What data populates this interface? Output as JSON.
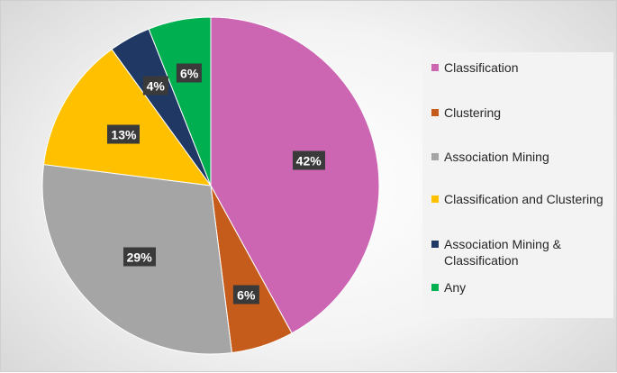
{
  "chart_data": {
    "type": "pie",
    "categories": [
      "Classification",
      "Clustering",
      "Association Mining",
      "Classification and Clustering",
      "Association Mining & Classification",
      "Any"
    ],
    "values": [
      42,
      6,
      29,
      13,
      4,
      6
    ],
    "data_labels": [
      "42%",
      "6%",
      "29%",
      "13%",
      "4%",
      "6%"
    ],
    "colors": [
      "#cc66b3",
      "#c65c1b",
      "#a5a5a5",
      "#ffc000",
      "#203864",
      "#00b050"
    ],
    "legend": {
      "position": "right",
      "items": [
        {
          "label": "Classification",
          "color": "#cc66b3"
        },
        {
          "label": "Clustering",
          "color": "#c65c1b"
        },
        {
          "label": "Association Mining",
          "color": "#a5a5a5"
        },
        {
          "label": "Classification and Clustering",
          "color": "#ffc000"
        },
        {
          "label": "Association Mining & Classification",
          "color": "#203864"
        },
        {
          "label": "Any",
          "color": "#00b050"
        }
      ]
    }
  }
}
